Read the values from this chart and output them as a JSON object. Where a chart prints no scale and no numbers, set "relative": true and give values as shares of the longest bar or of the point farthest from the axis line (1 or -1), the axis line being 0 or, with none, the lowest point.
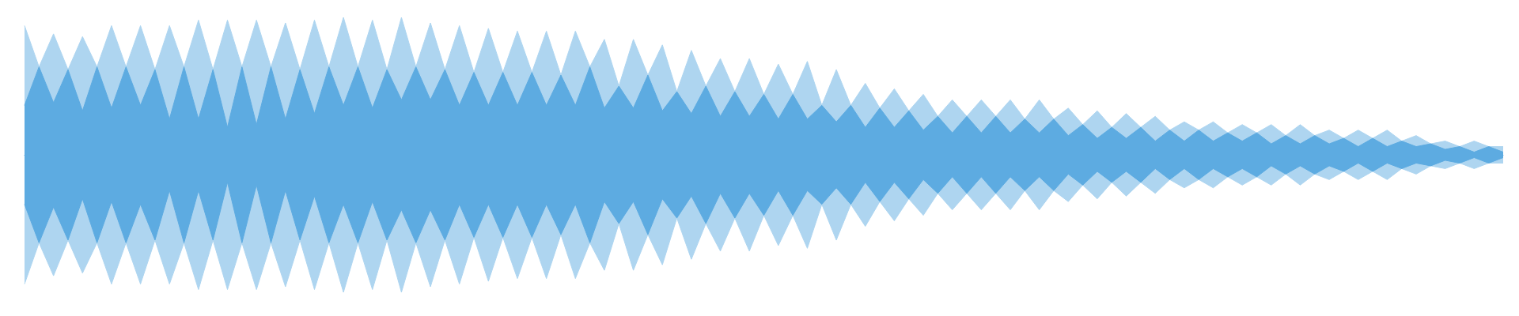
{
  "chart_data": {
    "type": "area",
    "relative": true,
    "categories": [
      null,
      null,
      null,
      null,
      null,
      null,
      null,
      null,
      null,
      null,
      null,
      null,
      null,
      null,
      null,
      null,
      null,
      null,
      null,
      null,
      null,
      null,
      null,
      null,
      null,
      null,
      null,
      null,
      null,
      null,
      null,
      null,
      null,
      null,
      null,
      null,
      null,
      null,
      null,
      null,
      null,
      null,
      null,
      null,
      null,
      null,
      null,
      null,
      null,
      null,
      null,
      null,
      null,
      null,
      null,
      null,
      null,
      null,
      null,
      null,
      null,
      null,
      null,
      null,
      null,
      null,
      null,
      null,
      null,
      null,
      null,
      null,
      null,
      null,
      null,
      null,
      null,
      null,
      null,
      null,
      null,
      null,
      null,
      null,
      null,
      null,
      null,
      null,
      null,
      null,
      null,
      null,
      null,
      null,
      null,
      null,
      null,
      null,
      null,
      null,
      null,
      null,
      null
    ],
    "series": [
      {
        "color": "#aed5f0",
        "values": [
          0.94,
          0.64,
          0.88,
          0.62,
          0.86,
          0.64,
          0.94,
          0.64,
          0.94,
          0.62,
          0.94,
          0.64,
          0.98,
          0.62,
          0.98,
          0.64,
          0.98,
          0.64,
          0.96,
          0.62,
          0.98,
          0.64,
          1,
          0.64,
          0.98,
          0.62,
          1,
          0.64,
          0.96,
          0.62,
          0.94,
          0.6,
          0.92,
          0.6,
          0.9,
          0.6,
          0.9,
          0.58,
          0.9,
          0.64,
          0.84,
          0.5,
          0.84,
          0.58,
          0.8,
          0.46,
          0.76,
          0.5,
          0.7,
          0.46,
          0.7,
          0.44,
          0.66,
          0.44,
          0.68,
          0.36,
          0.62,
          0.36,
          0.52,
          0.34,
          0.48,
          0.32,
          0.44,
          0.28,
          0.4,
          0.28,
          0.4,
          0.28,
          0.4,
          0.26,
          0.4,
          0.26,
          0.34,
          0.22,
          0.32,
          0.2,
          0.3,
          0.2,
          0.28,
          0.18,
          0.24,
          0.18,
          0.24,
          0.16,
          0.22,
          0.16,
          0.22,
          0.14,
          0.22,
          0.14,
          0.18,
          0.12,
          0.18,
          0.12,
          0.18,
          0.1,
          0.14,
          0.08,
          0.1,
          0.06,
          0.1,
          0.06,
          0.06
        ]
      },
      {
        "color": "#aed5f0",
        "values": [
          -0.94,
          -0.64,
          -0.88,
          -0.62,
          -0.86,
          -0.64,
          -0.94,
          -0.64,
          -0.94,
          -0.62,
          -0.94,
          -0.64,
          -0.98,
          -0.62,
          -0.98,
          -0.64,
          -0.98,
          -0.64,
          -0.96,
          -0.62,
          -0.98,
          -0.64,
          -1,
          -0.64,
          -0.98,
          -0.62,
          -1,
          -0.64,
          -0.96,
          -0.62,
          -0.94,
          -0.6,
          -0.92,
          -0.6,
          -0.9,
          -0.6,
          -0.9,
          -0.58,
          -0.9,
          -0.64,
          -0.84,
          -0.5,
          -0.84,
          -0.58,
          -0.8,
          -0.46,
          -0.76,
          -0.5,
          -0.7,
          -0.46,
          -0.7,
          -0.44,
          -0.66,
          -0.44,
          -0.68,
          -0.36,
          -0.62,
          -0.36,
          -0.52,
          -0.34,
          -0.48,
          -0.32,
          -0.44,
          -0.28,
          -0.4,
          -0.28,
          -0.4,
          -0.28,
          -0.4,
          -0.26,
          -0.4,
          -0.26,
          -0.34,
          -0.22,
          -0.32,
          -0.2,
          -0.3,
          -0.2,
          -0.28,
          -0.18,
          -0.24,
          -0.18,
          -0.24,
          -0.16,
          -0.22,
          -0.16,
          -0.22,
          -0.14,
          -0.22,
          -0.14,
          -0.18,
          -0.12,
          -0.18,
          -0.12,
          -0.18,
          -0.1,
          -0.14,
          -0.08,
          -0.1,
          -0.06,
          -0.1,
          -0.06,
          -0.06
        ]
      },
      {
        "color": "#5dabe1",
        "values": [
          0.36,
          0.64,
          0.38,
          0.62,
          0.32,
          0.64,
          0.34,
          0.64,
          0.36,
          0.62,
          0.26,
          0.64,
          0.26,
          0.62,
          0.2,
          0.64,
          0.22,
          0.64,
          0.26,
          0.62,
          0.3,
          0.64,
          0.36,
          0.64,
          0.34,
          0.62,
          0.4,
          0.64,
          0.4,
          0.62,
          0.36,
          0.6,
          0.36,
          0.6,
          0.36,
          0.6,
          0.36,
          0.58,
          0.36,
          0.64,
          0.34,
          0.5,
          0.34,
          0.58,
          0.32,
          0.46,
          0.3,
          0.5,
          0.28,
          0.46,
          0.28,
          0.44,
          0.26,
          0.44,
          0.26,
          0.36,
          0.24,
          0.36,
          0.2,
          0.34,
          0.2,
          0.32,
          0.18,
          0.28,
          0.16,
          0.28,
          0.16,
          0.28,
          0.16,
          0.26,
          0.16,
          0.26,
          0.14,
          0.22,
          0.12,
          0.2,
          0.12,
          0.2,
          0.1,
          0.18,
          0.1,
          0.18,
          0.1,
          0.16,
          0.1,
          0.16,
          0.08,
          0.14,
          0.08,
          0.14,
          0.08,
          0.12,
          0.06,
          0.12,
          0.06,
          0.1,
          0.06,
          0.08,
          0.04,
          0.06,
          0.02,
          0.06,
          0.02
        ]
      },
      {
        "color": "#5dabe1",
        "values": [
          -0.36,
          -0.64,
          -0.38,
          -0.62,
          -0.32,
          -0.64,
          -0.34,
          -0.64,
          -0.36,
          -0.62,
          -0.26,
          -0.64,
          -0.26,
          -0.62,
          -0.2,
          -0.64,
          -0.22,
          -0.64,
          -0.26,
          -0.62,
          -0.3,
          -0.64,
          -0.36,
          -0.64,
          -0.34,
          -0.62,
          -0.4,
          -0.64,
          -0.4,
          -0.62,
          -0.36,
          -0.6,
          -0.36,
          -0.6,
          -0.36,
          -0.6,
          -0.36,
          -0.58,
          -0.36,
          -0.64,
          -0.34,
          -0.5,
          -0.34,
          -0.58,
          -0.32,
          -0.46,
          -0.3,
          -0.5,
          -0.28,
          -0.46,
          -0.28,
          -0.44,
          -0.26,
          -0.44,
          -0.26,
          -0.36,
          -0.24,
          -0.36,
          -0.2,
          -0.34,
          -0.2,
          -0.32,
          -0.18,
          -0.28,
          -0.16,
          -0.28,
          -0.16,
          -0.28,
          -0.16,
          -0.26,
          -0.16,
          -0.26,
          -0.14,
          -0.22,
          -0.12,
          -0.2,
          -0.12,
          -0.2,
          -0.1,
          -0.18,
          -0.1,
          -0.18,
          -0.1,
          -0.16,
          -0.1,
          -0.16,
          -0.08,
          -0.14,
          -0.08,
          -0.14,
          -0.08,
          -0.12,
          -0.06,
          -0.12,
          -0.06,
          -0.1,
          -0.06,
          -0.08,
          -0.04,
          -0.06,
          -0.02,
          -0.06,
          -0.02
        ]
      }
    ]
  }
}
